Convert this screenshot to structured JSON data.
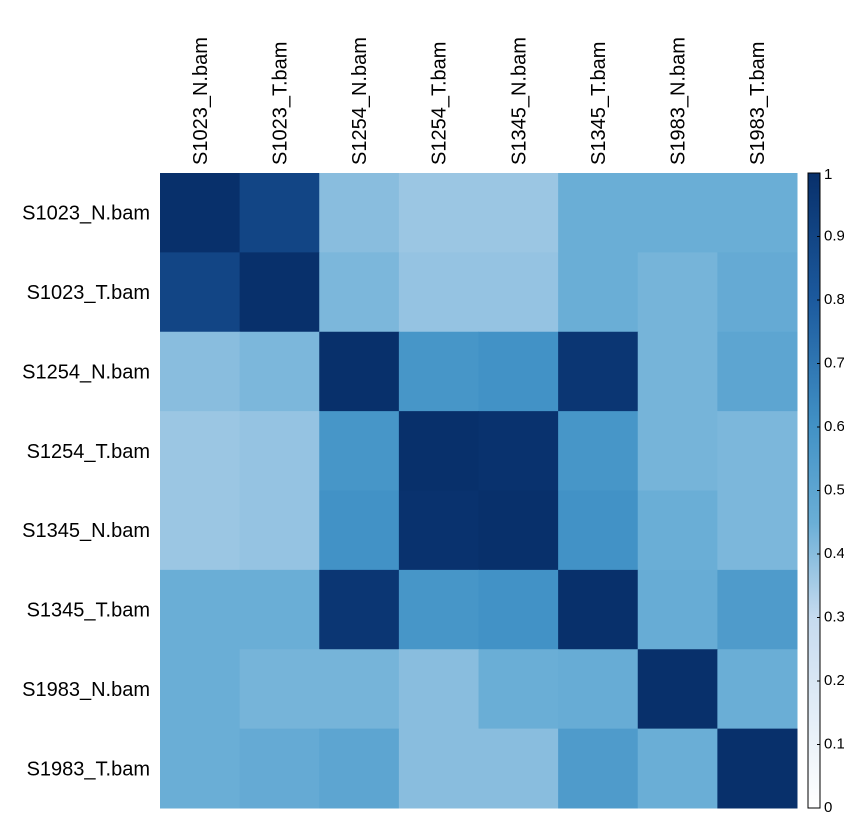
{
  "chart_data": {
    "type": "heatmap",
    "x": [
      "S1023_N.bam",
      "S1023_T.bam",
      "S1254_N.bam",
      "S1254_T.bam",
      "S1345_N.bam",
      "S1345_T.bam",
      "S1983_N.bam",
      "S1983_T.bam"
    ],
    "y": [
      "S1023_N.bam",
      "S1023_T.bam",
      "S1254_N.bam",
      "S1254_T.bam",
      "S1345_N.bam",
      "S1345_T.bam",
      "S1983_N.bam",
      "S1983_T.bam"
    ],
    "values": [
      [
        1,
        0.9,
        0.4,
        0.37,
        0.37,
        0.45,
        0.45,
        0.45
      ],
      [
        0.9,
        1,
        0.42,
        0.38,
        0.38,
        0.45,
        0.43,
        0.47
      ],
      [
        0.4,
        0.42,
        1,
        0.58,
        0.6,
        0.97,
        0.43,
        0.5
      ],
      [
        0.37,
        0.38,
        0.58,
        1,
        0.99,
        0.58,
        0.43,
        0.42
      ],
      [
        0.37,
        0.38,
        0.6,
        0.99,
        1,
        0.6,
        0.45,
        0.42
      ],
      [
        0.45,
        0.45,
        0.97,
        0.58,
        0.6,
        1,
        0.46,
        0.55
      ],
      [
        0.45,
        0.43,
        0.43,
        0.4,
        0.45,
        0.46,
        1,
        0.45
      ],
      [
        0.45,
        0.47,
        0.5,
        0.4,
        0.4,
        0.55,
        0.45,
        1
      ]
    ],
    "zlim": [
      0,
      1
    ],
    "zticks": [
      0,
      0.1,
      0.2,
      0.3,
      0.4,
      0.5,
      0.6,
      0.7,
      0.8,
      0.9,
      1
    ],
    "colorscale": [
      {
        "value": 0,
        "color": "#ffffff"
      },
      {
        "value": 0.3,
        "color": "#c6dbef"
      },
      {
        "value": 0.45,
        "color": "#6aaed6"
      },
      {
        "value": 0.6,
        "color": "#4292c6"
      },
      {
        "value": 0.8,
        "color": "#1c5a9e"
      },
      {
        "value": 1,
        "color": "#08306b"
      }
    ]
  }
}
